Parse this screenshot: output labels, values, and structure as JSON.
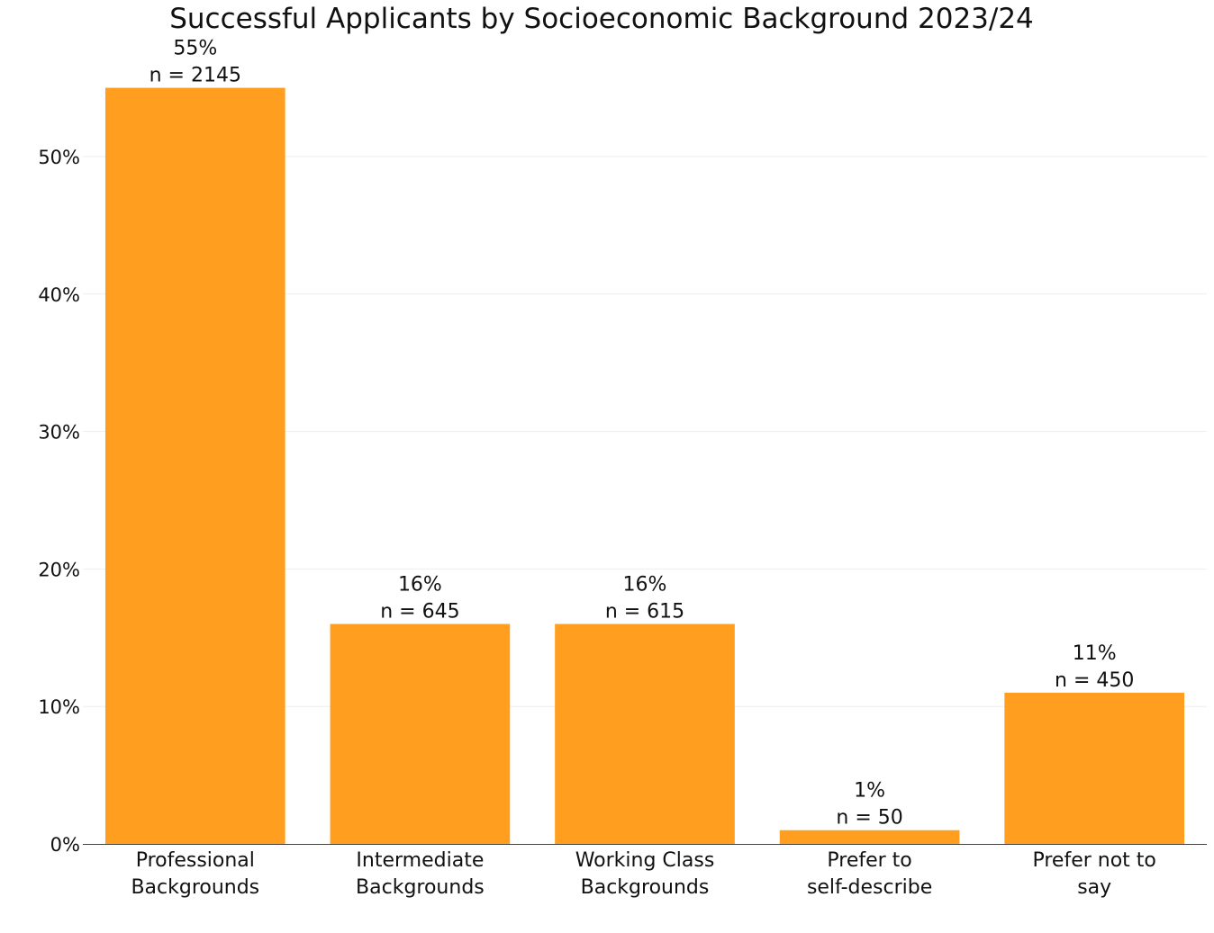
{
  "chart_data": {
    "type": "bar",
    "title": "Successful Applicants by Socioeconomic Background 2023/24",
    "xlabel": "",
    "ylabel": "",
    "categories": [
      [
        "Professional",
        "Backgrounds"
      ],
      [
        "Intermediate",
        "Backgrounds"
      ],
      [
        "Working Class",
        "Backgrounds"
      ],
      [
        "Prefer to",
        "self-describe"
      ],
      [
        "Prefer not to",
        "say"
      ]
    ],
    "values": [
      55,
      16,
      16,
      1,
      11
    ],
    "data_labels": [
      [
        "55%",
        "n = 2145"
      ],
      [
        "16%",
        "n = 645"
      ],
      [
        "16%",
        "n = 615"
      ],
      [
        "1%",
        "n = 50"
      ],
      [
        "11%",
        "n = 450"
      ]
    ],
    "yticks": [
      0,
      10,
      20,
      30,
      40,
      50
    ],
    "ytick_labels": [
      "0%",
      "10%",
      "20%",
      "30%",
      "40%",
      "50%"
    ],
    "ylim": [
      -0.3,
      57
    ],
    "grid": true,
    "bar_color": "#FF9E1F",
    "grid_color": "#EEEEEE"
  }
}
